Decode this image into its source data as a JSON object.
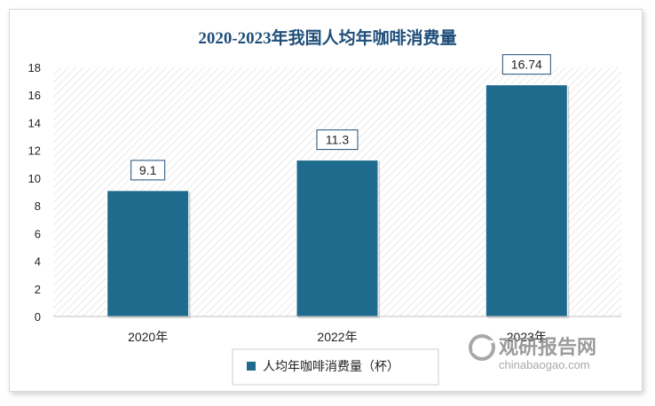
{
  "chart_data": {
    "type": "bar",
    "title": "2020-2023年我国人均年咖啡消费量",
    "categories": [
      "2020年",
      "2022年",
      "2023年"
    ],
    "series": [
      {
        "name": "人均年咖啡消费量（杯）",
        "values": [
          9.1,
          11.3,
          16.74
        ]
      }
    ],
    "data_labels": [
      "9.1",
      "11.3",
      "16.74"
    ],
    "y_ticks": [
      "0",
      "2",
      "4",
      "6",
      "8",
      "10",
      "12",
      "14",
      "16",
      "18"
    ],
    "ylim": [
      0,
      18
    ],
    "xlabel": "",
    "ylabel": "",
    "legend_position": "bottom",
    "grid": false,
    "colors": {
      "bar": "#1f6b8e",
      "title": "#1f4e79",
      "plot_hatch": "#d8d8d8"
    }
  },
  "watermark": {
    "brand": "观研报告网",
    "url": "chinabaogao.com"
  }
}
